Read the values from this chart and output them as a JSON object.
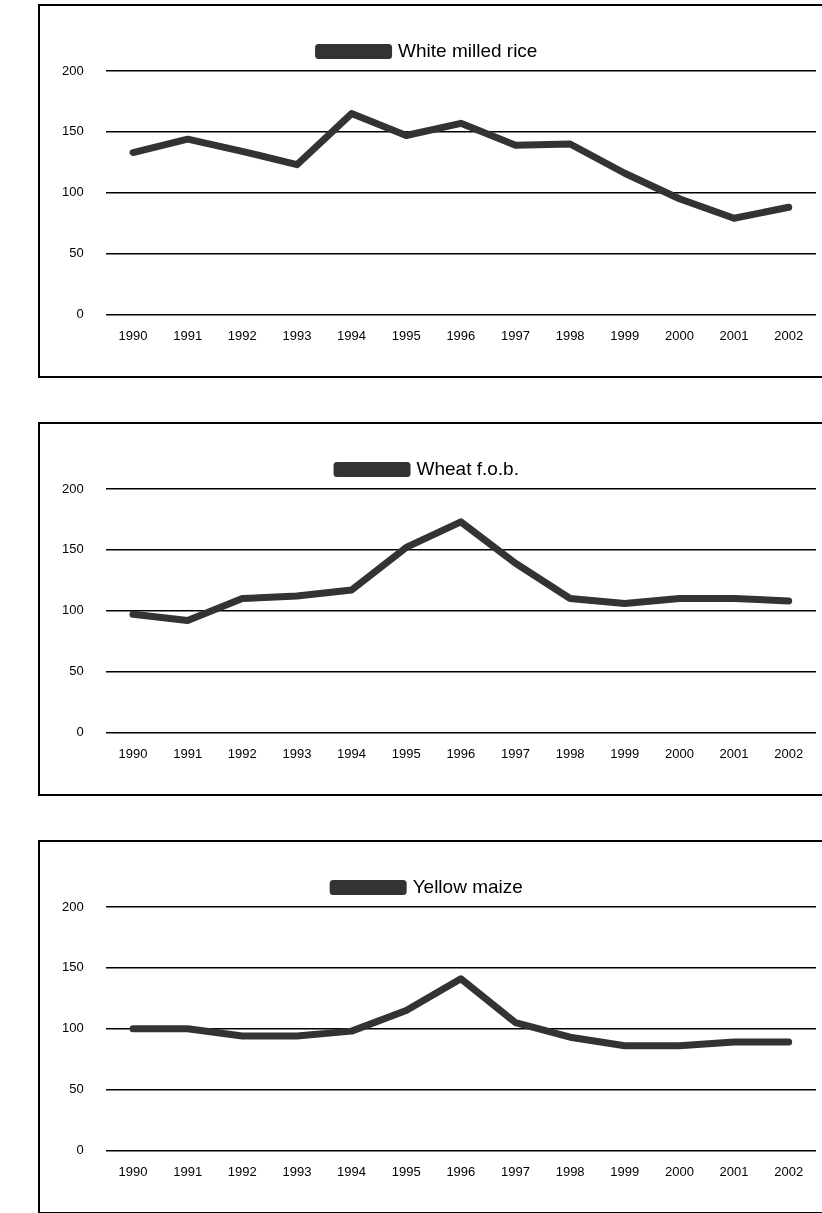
{
  "chart_data": [
    {
      "type": "line",
      "categories": [
        "1990",
        "1991",
        "1992",
        "1993",
        "1994",
        "1995",
        "1996",
        "1997",
        "1998",
        "1999",
        "2000",
        "2001",
        "2002"
      ],
      "series": [
        {
          "name": "White milled rice",
          "color": "#333333",
          "values": [
            133,
            144,
            134,
            123,
            165,
            147,
            157,
            139,
            140,
            116,
            95,
            79,
            88
          ]
        }
      ],
      "ylim": [
        0,
        200
      ],
      "yticks": [
        0,
        50,
        100,
        150,
        200
      ],
      "grid": "y",
      "legend": "top",
      "marker": "none",
      "line_style": "solid"
    },
    {
      "type": "line",
      "categories": [
        "1990",
        "1991",
        "1992",
        "1993",
        "1994",
        "1995",
        "1996",
        "1997",
        "1998",
        "1999",
        "2000",
        "2001",
        "2002"
      ],
      "series": [
        {
          "name": "Wheat f.o.b.",
          "color": "#333333",
          "values": [
            97,
            92,
            110,
            112,
            117,
            152,
            173,
            139,
            110,
            106,
            110,
            110,
            108
          ]
        }
      ],
      "ylim": [
        0,
        200
      ],
      "yticks": [
        0,
        50,
        100,
        150,
        200
      ],
      "grid": "y",
      "legend": "top",
      "marker": "none",
      "line_style": "solid"
    },
    {
      "type": "line",
      "categories": [
        "1990",
        "1991",
        "1992",
        "1993",
        "1994",
        "1995",
        "1996",
        "1997",
        "1998",
        "1999",
        "2000",
        "2001",
        "2002"
      ],
      "series": [
        {
          "name": "Yellow maize",
          "color": "#333333",
          "values": [
            100,
            100,
            94,
            94,
            98,
            115,
            141,
            105,
            93,
            86,
            86,
            89,
            89
          ]
        }
      ],
      "ylim": [
        0,
        200
      ],
      "yticks": [
        0,
        50,
        100,
        150,
        200
      ],
      "grid": "y",
      "legend": "top",
      "marker": "none",
      "line_style": "solid"
    }
  ]
}
